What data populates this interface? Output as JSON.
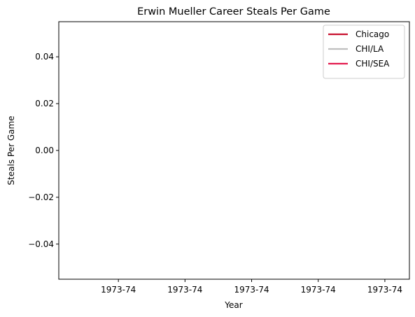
{
  "chart_data": {
    "type": "line",
    "title": "Erwin Mueller Career Steals Per Game",
    "xlabel": "Year",
    "ylabel": "Steals Per Game",
    "ylim": [
      -0.055,
      0.055
    ],
    "yticks": [
      -0.04,
      -0.02,
      0.0,
      0.02,
      0.04
    ],
    "ytick_labels": [
      "−0.04",
      "−0.02",
      "0.00",
      "0.02",
      "0.04"
    ],
    "xtick_labels": [
      "1973-74",
      "1973-74",
      "1973-74",
      "1973-74",
      "1973-74"
    ],
    "series": [
      {
        "name": "Chicago",
        "color": "#c8102e",
        "x": [],
        "values": []
      },
      {
        "name": "CHI/LA",
        "color": "#bebebe",
        "x": [],
        "values": []
      },
      {
        "name": "CHI/SEA",
        "color": "#e31b4e",
        "x": [],
        "values": []
      }
    ],
    "grid": false,
    "legend_position": "upper right"
  }
}
